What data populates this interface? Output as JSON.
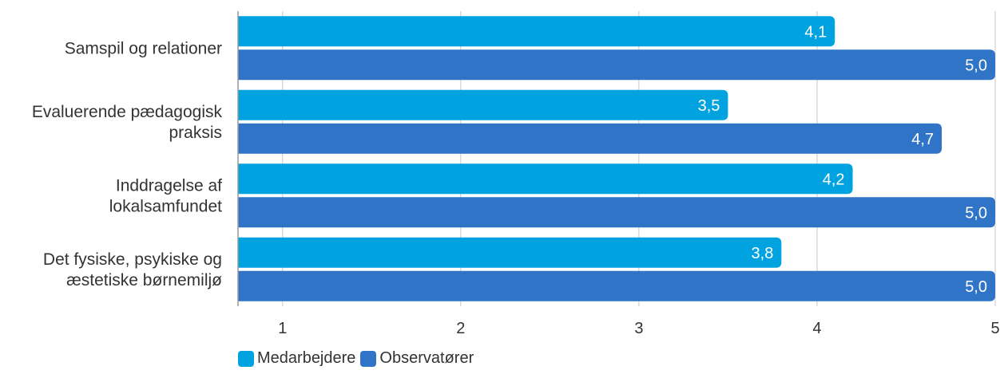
{
  "chart_data": {
    "type": "bar",
    "orientation": "horizontal",
    "categories": [
      [
        "Samspil og relationer"
      ],
      [
        "Evaluerende pædagogisk",
        "praksis"
      ],
      [
        "Inddragelse af",
        "lokalsamfundet"
      ],
      [
        "Det fysiske, psykiske og",
        "æstetiske børnemiljø"
      ]
    ],
    "series": [
      {
        "name": "Medarbejdere",
        "color": "#00a3e0",
        "values": [
          4.1,
          3.5,
          4.2,
          3.8
        ],
        "labels": [
          "4,1",
          "3,5",
          "4,2",
          "3,8"
        ]
      },
      {
        "name": "Observatører",
        "color": "#2f74c7",
        "values": [
          5.0,
          4.7,
          5.0,
          5.0
        ],
        "labels": [
          "5,0",
          "4,7",
          "5,0",
          "5,0"
        ]
      }
    ],
    "xlim": [
      0.75,
      5
    ],
    "xticks": [
      1,
      2,
      3,
      4,
      5
    ],
    "xtick_labels": [
      "1",
      "2",
      "3",
      "4",
      "5"
    ],
    "grid": true,
    "legend_position": "bottom-left"
  }
}
